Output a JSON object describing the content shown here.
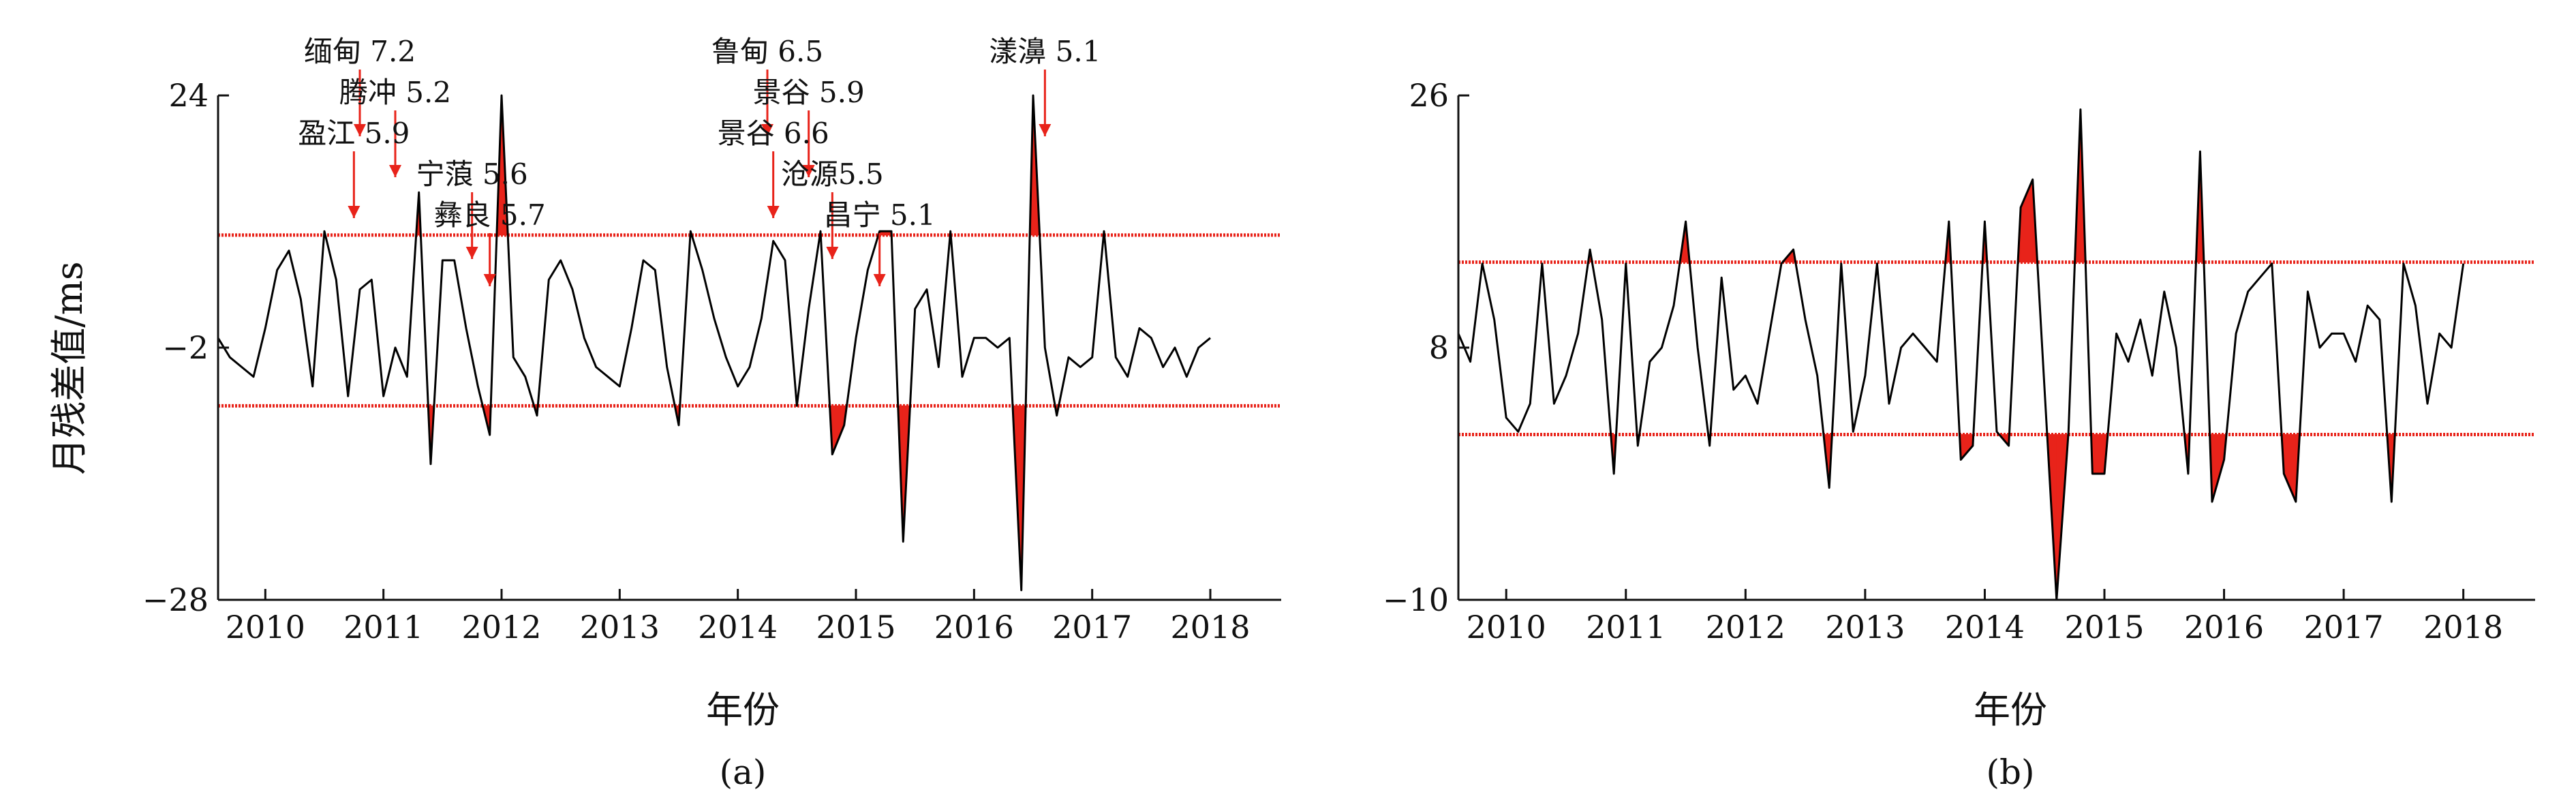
{
  "ylabel": "月残差值/ms",
  "chart_data": [
    {
      "type": "line",
      "panel": "(a)",
      "xlabel": "年份",
      "ylabel": "月残差值/ms",
      "xlim": [
        2009.6,
        2018.6
      ],
      "ylim": [
        -28,
        24
      ],
      "yticks": [
        24,
        -2,
        -28
      ],
      "xticks": [
        2010,
        2011,
        2012,
        2013,
        2014,
        2015,
        2016,
        2017,
        2018
      ],
      "upper_threshold": 9.6,
      "lower_threshold": -8.0,
      "line_color": "#000000",
      "threshold_color": "#e8231a",
      "fill_color": "#e8231a",
      "x": [
        2009.6,
        2009.7,
        2009.8,
        2009.9,
        2010.0,
        2010.1,
        2010.2,
        2010.3,
        2010.4,
        2010.5,
        2010.6,
        2010.7,
        2010.8,
        2010.9,
        2011.0,
        2011.1,
        2011.2,
        2011.3,
        2011.4,
        2011.5,
        2011.6,
        2011.7,
        2011.8,
        2011.9,
        2012.0,
        2012.1,
        2012.2,
        2012.3,
        2012.4,
        2012.5,
        2012.6,
        2012.7,
        2012.8,
        2012.9,
        2013.0,
        2013.1,
        2013.2,
        2013.3,
        2013.4,
        2013.5,
        2013.6,
        2013.7,
        2013.8,
        2013.9,
        2014.0,
        2014.1,
        2014.2,
        2014.3,
        2014.4,
        2014.5,
        2014.6,
        2014.7,
        2014.8,
        2014.9,
        2015.0,
        2015.1,
        2015.2,
        2015.3,
        2015.4,
        2015.5,
        2015.6,
        2015.7,
        2015.8,
        2015.9,
        2016.0,
        2016.1,
        2016.2,
        2016.3,
        2016.4,
        2016.5,
        2016.6,
        2016.7,
        2016.8,
        2016.9,
        2017.0,
        2017.1,
        2017.2,
        2017.3,
        2017.4,
        2017.5,
        2017.6,
        2017.7,
        2017.8,
        2017.9,
        2018.0
      ],
      "y": [
        -1,
        -3,
        -4,
        -5,
        0,
        6,
        8,
        3,
        -6,
        10,
        5,
        -7,
        4,
        5,
        -7,
        -2,
        -5,
        14,
        -14,
        7,
        7,
        0,
        -6,
        -11,
        24,
        -3,
        -5,
        -9,
        5,
        7,
        4,
        -1,
        -4,
        -5,
        -6,
        0,
        7,
        6,
        -4,
        -10,
        10,
        6,
        1,
        -3,
        -6,
        -4,
        1,
        9,
        7,
        -8,
        2,
        10,
        -13,
        -10,
        -1,
        6,
        10,
        10,
        -22,
        2,
        4,
        -4,
        10,
        -5,
        -1,
        -1,
        -2,
        -1,
        -27,
        24,
        -2,
        -9,
        -3,
        -4,
        -3,
        10,
        -3,
        -5,
        0,
        -1,
        -4,
        -2,
        -5,
        -2,
        -1
      ],
      "annotations": [
        {
          "label": "缅甸 7.2",
          "x": 2010.8
        },
        {
          "label": "腾冲 5.2",
          "x": 2011.1
        },
        {
          "label": "盈江 5.9",
          "x": 2010.75
        },
        {
          "label": "宁蒗 5.6",
          "x": 2011.75
        },
        {
          "label": "彝良 5.7",
          "x": 2011.9
        },
        {
          "label": "鲁甸 6.5",
          "x": 2014.25
        },
        {
          "label": "景谷 5.9",
          "x": 2014.6
        },
        {
          "label": "景谷 6.6",
          "x": 2014.3
        },
        {
          "label": "沧源5.5",
          "x": 2014.8
        },
        {
          "label": "昌宁 5.1",
          "x": 2015.2
        },
        {
          "label": "漾濞 5.1",
          "x": 2016.6
        }
      ]
    },
    {
      "type": "line",
      "panel": "(b)",
      "xlabel": "年份",
      "ylabel": "",
      "xlim": [
        2009.6,
        2018.6
      ],
      "ylim": [
        -10,
        26
      ],
      "yticks": [
        26,
        8,
        -10
      ],
      "xticks": [
        2010,
        2011,
        2012,
        2013,
        2014,
        2015,
        2016,
        2017,
        2018
      ],
      "upper_threshold": 14.1,
      "lower_threshold": 1.8,
      "line_color": "#000000",
      "threshold_color": "#e8231a",
      "fill_color": "#e8231a",
      "x": [
        2009.6,
        2009.7,
        2009.8,
        2009.9,
        2010.0,
        2010.1,
        2010.2,
        2010.3,
        2010.4,
        2010.5,
        2010.6,
        2010.7,
        2010.8,
        2010.9,
        2011.0,
        2011.1,
        2011.2,
        2011.3,
        2011.4,
        2011.5,
        2011.6,
        2011.7,
        2011.8,
        2011.9,
        2012.0,
        2012.1,
        2012.2,
        2012.3,
        2012.4,
        2012.5,
        2012.6,
        2012.7,
        2012.8,
        2012.9,
        2013.0,
        2013.1,
        2013.2,
        2013.3,
        2013.4,
        2013.5,
        2013.6,
        2013.7,
        2013.8,
        2013.9,
        2014.0,
        2014.1,
        2014.2,
        2014.3,
        2014.4,
        2014.5,
        2014.6,
        2014.7,
        2014.8,
        2014.9,
        2015.0,
        2015.1,
        2015.2,
        2015.3,
        2015.4,
        2015.5,
        2015.6,
        2015.7,
        2015.8,
        2015.9,
        2016.0,
        2016.1,
        2016.2,
        2016.3,
        2016.4,
        2016.5,
        2016.6,
        2016.7,
        2016.8,
        2016.9,
        2017.0,
        2017.1,
        2017.2,
        2017.3,
        2017.4,
        2017.5,
        2017.6,
        2017.7,
        2017.8,
        2017.9,
        2018.0
      ],
      "y": [
        9,
        7,
        14,
        10,
        3,
        2,
        4,
        14,
        4,
        6,
        9,
        15,
        10,
        -1,
        14,
        1,
        7,
        8,
        11,
        17,
        8,
        1,
        13,
        5,
        6,
        4,
        9,
        14,
        15,
        10,
        6,
        -2,
        14,
        2,
        6,
        14,
        4,
        8,
        9,
        8,
        7,
        17,
        0,
        1,
        17,
        2,
        1,
        18,
        20,
        5,
        -10,
        2,
        25,
        -1,
        -1,
        9,
        7,
        10,
        6,
        12,
        8,
        -1,
        22,
        -3,
        0,
        9,
        12,
        13,
        14,
        -1,
        -3,
        12,
        8,
        9,
        9,
        7,
        11,
        10,
        -3,
        14,
        11,
        4,
        9,
        8,
        14
      ]
    }
  ]
}
